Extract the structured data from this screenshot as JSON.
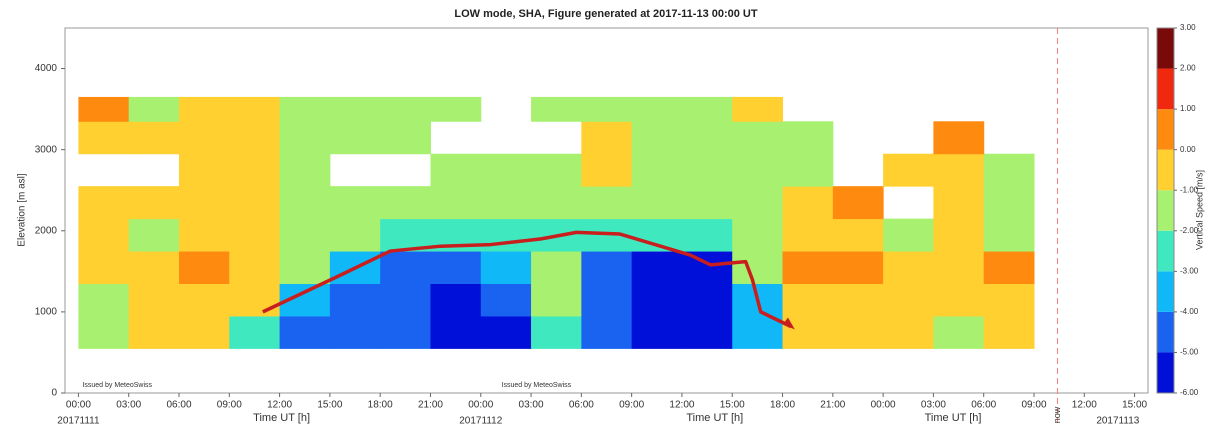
{
  "chart_data": {
    "type": "heatmap",
    "title": "LOW mode, SHA, Figure generated at 2017-11-13 00:00 UT",
    "x_label": "Time UT [h]",
    "y_label": "Elevation [m asl]",
    "colorbar_label": "Vertical Speed [m/s]",
    "xlim": [
      -0.8,
      63.8
    ],
    "ylim": [
      0,
      4500
    ],
    "xticks": [
      {
        "value": 0,
        "label": "00:00"
      },
      {
        "value": 3,
        "label": "03:00"
      },
      {
        "value": 6,
        "label": "06:00"
      },
      {
        "value": 9,
        "label": "09:00"
      },
      {
        "value": 12,
        "label": "12:00"
      },
      {
        "value": 15,
        "label": "15:00"
      },
      {
        "value": 18,
        "label": "18:00"
      },
      {
        "value": 21,
        "label": "21:00"
      },
      {
        "value": 24,
        "label": "00:00"
      },
      {
        "value": 27,
        "label": "03:00"
      },
      {
        "value": 30,
        "label": "06:00"
      },
      {
        "value": 33,
        "label": "09:00"
      },
      {
        "value": 36,
        "label": "12:00"
      },
      {
        "value": 39,
        "label": "15:00"
      },
      {
        "value": 42,
        "label": "18:00"
      },
      {
        "value": 45,
        "label": "21:00"
      },
      {
        "value": 48,
        "label": "00:00"
      },
      {
        "value": 51,
        "label": "03:00"
      },
      {
        "value": 54,
        "label": "06:00"
      },
      {
        "value": 57,
        "label": "09:00"
      },
      {
        "value": 60,
        "label": "12:00"
      },
      {
        "value": 63,
        "label": "15:00"
      }
    ],
    "yticks": [
      0,
      1000,
      2000,
      3000,
      4000
    ],
    "date_labels": [
      {
        "value": 0,
        "label": "20171111"
      },
      {
        "value": 24,
        "label": "20171112"
      },
      {
        "value": 62,
        "label": "20171113"
      }
    ],
    "x_edges": [
      0,
      3,
      6,
      9,
      12,
      15,
      18,
      21,
      24,
      27,
      30,
      33,
      36,
      39,
      42,
      45,
      48,
      51,
      54,
      57
    ],
    "y_edges": [
      550,
      950,
      1350,
      1750,
      2150,
      2550,
      2950,
      3350,
      3650
    ],
    "z": [
      [
        -1.5,
        -0.5,
        -0.5,
        -2.5,
        -4.5,
        -5,
        -4.5,
        -5.5,
        -5.5,
        -2.5,
        -4.5,
        -5.5,
        -5.5,
        -3.5,
        -0.5,
        -0.5,
        -0.5,
        -1.5,
        -0.5
      ],
      [
        -1.5,
        -0.5,
        -0.5,
        -0.5,
        -4,
        -5,
        -4.5,
        -5.5,
        -4.5,
        -2,
        -5,
        -5.5,
        -5.5,
        -4,
        -0.5,
        -0.5,
        -0.5,
        -0.5,
        -0.5
      ],
      [
        -0.5,
        -0.5,
        0.5,
        -0.5,
        -1.5,
        -4,
        -5,
        -5,
        -4,
        -2,
        -5,
        -5.5,
        -5.5,
        -1.5,
        0.5,
        0.5,
        -0.5,
        -0.5,
        0.5
      ],
      [
        -0.5,
        -1.5,
        -0.5,
        -0.5,
        -1.5,
        -1.5,
        -2.5,
        -2.5,
        -3,
        -2.5,
        -3,
        -2.5,
        -2.5,
        -1.5,
        -0.5,
        -0.5,
        -1.5,
        -0.5,
        -1.5
      ],
      [
        -0.5,
        -0.5,
        -0.5,
        -0.5,
        -1.5,
        -1.5,
        -1.5,
        -1.5,
        -1.5,
        -1.5,
        -1.5,
        -1.5,
        -1.5,
        -1.5,
        -0.5,
        0.5,
        null,
        -0.5,
        -1.5
      ],
      [
        null,
        null,
        -0.5,
        -0.5,
        -1.5,
        null,
        null,
        -1.5,
        -1.5,
        -1.5,
        -0.5,
        -1.5,
        -2,
        -1.5,
        -1.5,
        null,
        -0.5,
        -0.5,
        -1.5
      ],
      [
        -0.5,
        -0.5,
        -0.5,
        -0.5,
        -1.5,
        -1.5,
        -1.5,
        null,
        null,
        null,
        -0.5,
        -1.5,
        -1.5,
        -1.5,
        -1.5,
        null,
        null,
        0.5,
        null
      ],
      [
        0.5,
        -1.5,
        -0.5,
        -0.5,
        -1.5,
        -1.5,
        -1.5,
        -1.5,
        null,
        -1.5,
        -1.5,
        -1.5,
        -1.5,
        -0.5,
        null,
        null,
        null,
        null,
        null
      ]
    ],
    "color_levels": [
      {
        "value": -6,
        "label": "-6.00"
      },
      {
        "value": -5,
        "label": "-5.00"
      },
      {
        "value": -4,
        "label": "-4.00"
      },
      {
        "value": -3,
        "label": "-3.00"
      },
      {
        "value": -2,
        "label": "-2.00"
      },
      {
        "value": -1,
        "label": "-1.00"
      },
      {
        "value": 0,
        "label": "0.00"
      },
      {
        "value": 1,
        "label": "1.00"
      },
      {
        "value": 2,
        "label": "2.00"
      },
      {
        "value": 3,
        "label": "3.00"
      }
    ],
    "colors": [
      "#0010d8",
      "#1a63f0",
      "#10b8f8",
      "#40e8c0",
      "#a8f070",
      "#ffd030",
      "#ff8a10",
      "#f02810",
      "#7a0a0a"
    ],
    "overlay": {
      "color": "#c81e1e",
      "x": [
        11,
        15.6,
        18.6,
        21.6,
        24.6,
        27.6,
        29.7,
        32.3,
        36.5,
        37.7,
        39.8,
        40.2,
        40.7,
        42.5
      ],
      "y": [
        1000,
        1450,
        1750,
        1810,
        1830,
        1900,
        1980,
        1960,
        1700,
        1580,
        1620,
        1400,
        1000,
        820
      ]
    },
    "now": {
      "value": 58.4,
      "label": "now"
    },
    "issuer": {
      "label": "Issued by MeteoSwiss",
      "x": [
        0,
        25
      ]
    }
  }
}
